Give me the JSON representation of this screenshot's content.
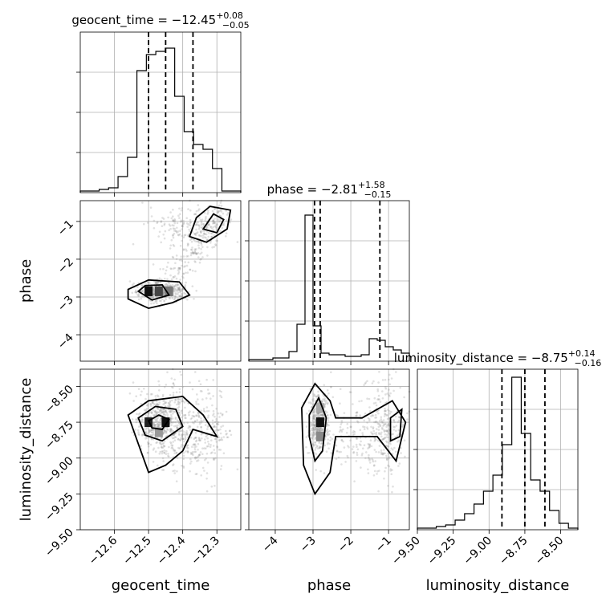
{
  "chart_data": {
    "type": "corner",
    "parameters": [
      "geocent_time",
      "phase",
      "luminosity_distance"
    ],
    "titles": [
      {
        "param": "geocent_time",
        "prefix": "geocent_time = ",
        "median": "−12.45",
        "plus": "+0.08",
        "minus": "−0.05"
      },
      {
        "param": "phase",
        "prefix": "phase = ",
        "median": "−2.81",
        "plus": "+1.58",
        "minus": "−0.15"
      },
      {
        "param": "luminosity_distance",
        "prefix": "luminosity_distance = ",
        "median": "−8.75",
        "plus": "+0.14",
        "minus": "−0.16"
      }
    ],
    "axes": {
      "geocent_time": {
        "range": [
          -12.7,
          -12.23
        ],
        "ticks": [
          -12.6,
          -12.5,
          -12.4,
          -12.3
        ],
        "tick_labels": [
          "−12.6",
          "−12.5",
          "−12.4",
          "−12.3"
        ]
      },
      "phase": {
        "range": [
          -4.7,
          -0.45
        ],
        "ticks": [
          -4,
          -3,
          -2,
          -1
        ],
        "tick_labels": [
          "−4",
          "−3",
          "−2",
          "−1"
        ]
      },
      "luminosity_distance": {
        "range": [
          -9.5,
          -8.38
        ],
        "ticks": [
          -9.5,
          -9.25,
          -9.0,
          -8.75,
          -8.5
        ],
        "tick_labels": [
          "−9.50",
          "−9.25",
          "−9.00",
          "−8.75",
          "−8.50"
        ]
      }
    },
    "quantiles": {
      "geocent_time": [
        -12.5,
        -12.45,
        -12.37
      ],
      "phase": [
        -2.96,
        -2.81,
        -1.23
      ],
      "luminosity_distance": [
        -8.91,
        -8.75,
        -8.61
      ]
    },
    "histograms": {
      "geocent_time": {
        "range": [
          -12.7,
          -12.23
        ],
        "counts": [
          0.01,
          0.01,
          0.02,
          0.03,
          0.1,
          0.22,
          0.76,
          0.86,
          0.88,
          0.9,
          0.6,
          0.38,
          0.3,
          0.27,
          0.15,
          0.01,
          0.01
        ]
      },
      "phase": {
        "range": [
          -4.7,
          -0.45
        ],
        "counts": [
          0.01,
          0.01,
          0.01,
          0.02,
          0.02,
          0.06,
          0.23,
          0.91,
          0.22,
          0.05,
          0.04,
          0.04,
          0.03,
          0.03,
          0.04,
          0.14,
          0.13,
          0.09,
          0.07,
          0.05
        ]
      },
      "luminosity_distance": {
        "range": [
          -9.5,
          -8.38
        ],
        "counts": [
          0.01,
          0.01,
          0.02,
          0.03,
          0.06,
          0.1,
          0.16,
          0.24,
          0.34,
          0.53,
          0.95,
          0.6,
          0.31,
          0.24,
          0.12,
          0.04,
          0.01
        ]
      }
    },
    "grid": true,
    "xlabels": [
      "geocent_time",
      "phase",
      "luminosity_distance"
    ],
    "ylabels": [
      "",
      "phase",
      "luminosity_distance"
    ]
  }
}
